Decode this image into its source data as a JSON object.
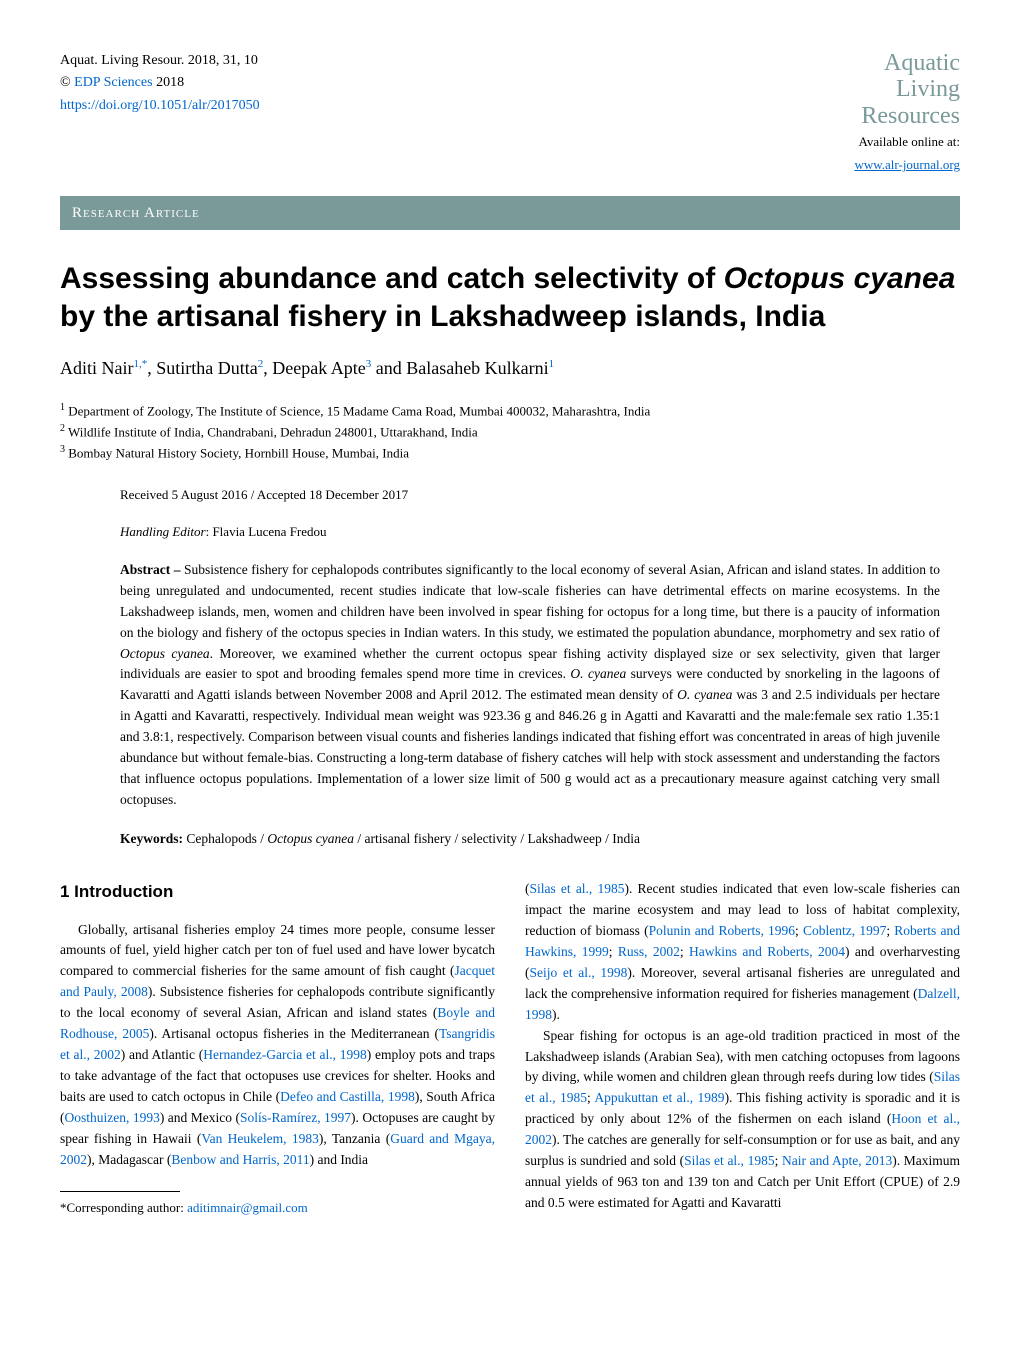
{
  "header": {
    "journal_ref": "Aquat. Living Resour. 2018, 31, 10",
    "copyright_prefix": "©",
    "publisher_link_text": "EDP Sciences",
    "copyright_year": "2018",
    "doi_url": "https://doi.org/10.1051/alr/2017050",
    "logo_line1": "Aquatic",
    "logo_line2": "Living",
    "logo_line3": "Resources",
    "available_text": "Available online at:",
    "journal_url": "www.alr-journal.org",
    "colors": {
      "teal_text": "#7a9999",
      "link_blue": "#0066cc"
    }
  },
  "research_bar_text": "Research Article",
  "title_prefix": "Assessing abundance and catch selectivity of ",
  "title_species": "Octopus cyanea",
  "title_suffix": " by the artisanal fishery in Lakshadweep islands, India",
  "authors": {
    "a1_name": "Aditi Nair",
    "a1_sup": "1,",
    "a1_star": "*",
    "a2_name": ", Sutirtha Dutta",
    "a2_sup": "2",
    "a3_name": ", Deepak Apte",
    "a3_sup": "3",
    "a4_name": " and Balasaheb Kulkarni",
    "a4_sup": "1"
  },
  "affiliations": {
    "aff1_num": "1",
    "aff1_text": " Department of Zoology, The Institute of Science, 15 Madame Cama Road, Mumbai 400032, Maharashtra, India",
    "aff2_num": "2",
    "aff2_text": " Wildlife Institute of India, Chandrabani, Dehradun 248001, Uttarakhand, India",
    "aff3_num": "3",
    "aff3_text": " Bombay Natural History Society, Hornbill House, Mumbai, India"
  },
  "dates": "Received 5 August 2016 / Accepted 18 December 2017",
  "handling_label": "Handling Editor",
  "handling_name": ": Flavia Lucena Fredou",
  "abstract": {
    "label": "Abstract – ",
    "part1": "Subsistence fishery for cephalopods contributes significantly to the local economy of several Asian, African and island states. In addition to being unregulated and undocumented, recent studies indicate that low-scale fisheries can have detrimental effects on marine ecosystems. In the Lakshadweep islands, men, women and children have been involved in spear fishing for octopus for a long time, but there is a paucity of information on the biology and fishery of the octopus species in Indian waters. In this study, we estimated the population abundance, morphometry and sex ratio of ",
    "species1": "Octopus cyanea",
    "part2": ". Moreover, we examined whether the current octopus spear fishing activity displayed size or sex selectivity, given that larger individuals are easier to spot and brooding females spend more time in crevices. ",
    "species2": "O. cyanea",
    "part3": " surveys were conducted by snorkeling in the lagoons of Kavaratti and Agatti islands between November 2008 and April 2012. The estimated mean density of ",
    "species3": "O. cyanea",
    "part4": " was 3 and 2.5 individuals per hectare in Agatti and Kavaratti, respectively. Individual mean weight was 923.36 g and 846.26 g in Agatti and Kavaratti and the male:female sex ratio 1.35:1 and 3.8:1, respectively. Comparison between visual counts and fisheries landings indicated that fishing effort was concentrated in areas of high juvenile abundance but without female-bias. Constructing a long-term database of fishery catches will help with stock assessment and understanding the factors that influence octopus populations. Implementation of a lower size limit of 500 g would act as a precautionary measure against catching very small octopuses."
  },
  "keywords": {
    "label": "Keywords: ",
    "part1": "Cephalopods / ",
    "species": "Octopus cyanea",
    "part2": " / artisanal fishery / selectivity / Lakshadweep / India"
  },
  "section_heading": "1 Introduction",
  "col1": {
    "p1a": "Globally, artisanal fisheries employ 24 times more people, consume lesser amounts of fuel, yield higher catch per ton of fuel used and have lower bycatch compared to commercial fisheries for the same amount of fish caught (",
    "r1": "Jacquet and Pauly, 2008",
    "p1b": "). Subsistence fisheries for cephalopods contribute significantly to the local economy of several Asian, African and island states (",
    "r2": "Boyle and Rodhouse, 2005",
    "p1c": "). Artisanal octopus fisheries in the Mediterranean (",
    "r3": "Tsangridis et al., 2002",
    "p1d": ") and Atlantic (",
    "r4": "Hernandez-Garcia et al., 1998",
    "p1e": ") employ pots and traps to take advantage of the fact that octopuses use crevices for shelter. Hooks and baits are used to catch octopus in Chile (",
    "r5": "Defeo and Castilla, 1998",
    "p1f": "), South Africa (",
    "r6": "Oosthuizen, 1993",
    "p1g": ") and Mexico (",
    "r7": "Solís-Ramírez, 1997",
    "p1h": "). Octopuses are caught by spear fishing in Hawaii (",
    "r8": "Van Heukelem, 1983",
    "p1i": "), Tanzania (",
    "r9": "Guard and Mgaya, 2002",
    "p1j": "), Madagascar (",
    "r10": "Benbow and Harris, 2011",
    "p1k": ") and India"
  },
  "corresp_text": "*Corresponding author: ",
  "corresp_email": "aditimnair@gmail.com",
  "col2": {
    "p1a": "(",
    "r1": "Silas et al., 1985",
    "p1b": "). Recent studies indicated that even low-scale fisheries can impact the marine ecosystem and may lead to loss of habitat complexity, reduction of biomass (",
    "r2": "Polunin and Roberts, 1996",
    "p1c": "; ",
    "r3": "Coblentz, 1997",
    "p1d": "; ",
    "r4": "Roberts and Hawkins, 1999",
    "p1e": "; ",
    "r5": "Russ, 2002",
    "p1f": "; ",
    "r6": "Hawkins and Roberts, 2004",
    "p1g": ") and overharvesting (",
    "r7": "Seijo et al., 1998",
    "p1h": "). Moreover, several artisanal fisheries are unregulated and lack the comprehensive information required for fisheries management (",
    "r8": "Dalzell, 1998",
    "p1i": ").",
    "p2a": "Spear fishing for octopus is an age-old tradition practiced in most of the Lakshadweep islands (Arabian Sea), with men catching octopuses from lagoons by diving, while women and children glean through reefs during low tides (",
    "r21": "Silas et al., 1985",
    "p2b": "; ",
    "r22": "Appukuttan et al., 1989",
    "p2c": "). This fishing activity is sporadic and it is practiced by only about 12% of the fishermen on each island (",
    "r23": "Hoon et al., 2002",
    "p2d": "). The catches are generally for self-consumption or for use as bait, and any surplus is sundried and sold (",
    "r24": "Silas et al., 1985",
    "p2e": "; ",
    "r25": "Nair and Apte, 2013",
    "p2f": "). Maximum annual yields of 963 ton and 139 ton and Catch per Unit Effort (CPUE) of 2.9 and 0.5 were estimated for Agatti and Kavaratti"
  }
}
